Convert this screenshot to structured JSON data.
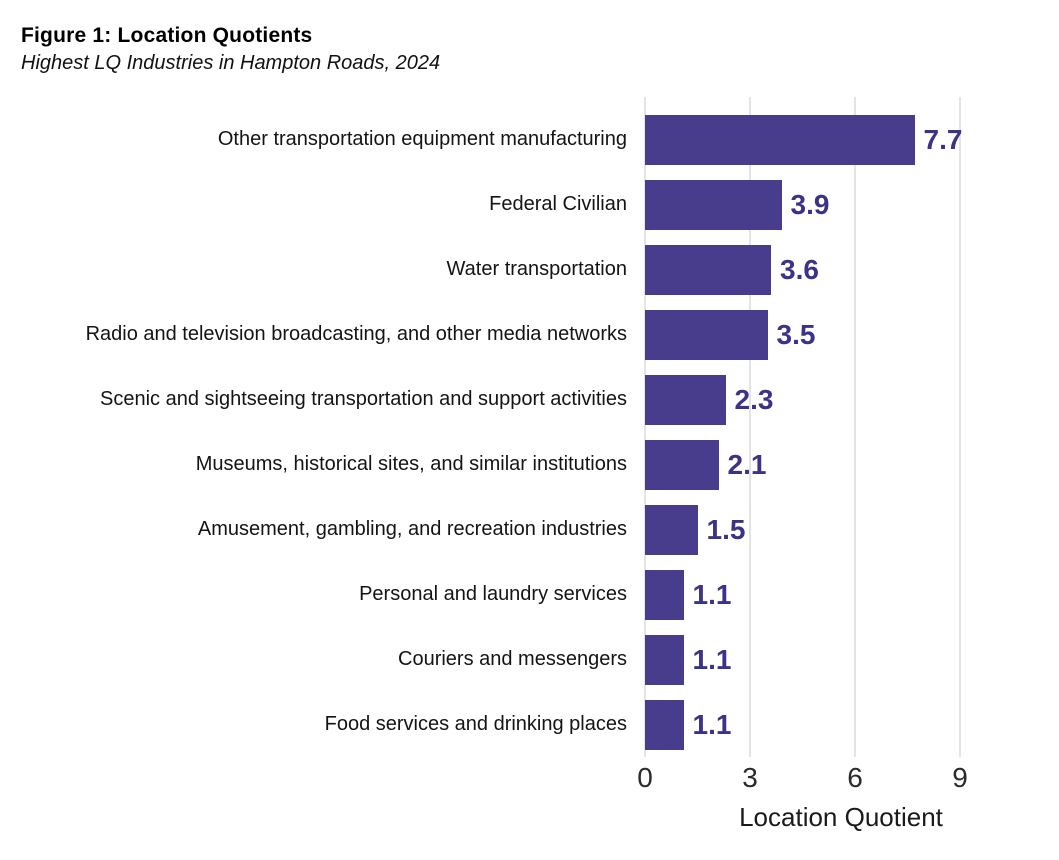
{
  "figure": {
    "title": "Figure 1: Location Quotients",
    "subtitle": "Highest LQ Industries in Hampton Roads, 2024"
  },
  "chart_data": {
    "type": "bar",
    "orientation": "horizontal",
    "title": "Figure 1: Location Quotients",
    "subtitle": "Highest LQ Industries in Hampton Roads, 2024",
    "categories": [
      "Other transportation equipment manufacturing",
      "Federal Civilian",
      "Water transportation",
      "Radio and television broadcasting, and other media networks",
      "Scenic and sightseeing transportation and support activities",
      "Museums, historical sites, and similar institutions",
      "Amusement, gambling, and recreation industries",
      "Personal and laundry services",
      "Couriers and messengers",
      "Food services and drinking places"
    ],
    "values": [
      7.7,
      3.9,
      3.6,
      3.5,
      2.3,
      2.1,
      1.5,
      1.1,
      1.1,
      1.1
    ],
    "data_labels": [
      "7.7",
      "3.9",
      "3.6",
      "3.5",
      "2.3",
      "2.1",
      "1.5",
      "1.1",
      "1.1",
      "1.1"
    ],
    "xlabel": "Location Quotient",
    "ylabel": "",
    "xlim": [
      0,
      9
    ],
    "xticks": [
      0,
      3,
      6,
      9
    ],
    "grid": "vertical-gridlines-at-xticks",
    "legend": "none",
    "colors": {
      "bar": "#473D8C",
      "value_label": "#3B3387",
      "gridline": "#E4E4E4",
      "tick_label": "#2B2B2B",
      "category_label": "#141414",
      "background": "#FFFFFF"
    }
  }
}
